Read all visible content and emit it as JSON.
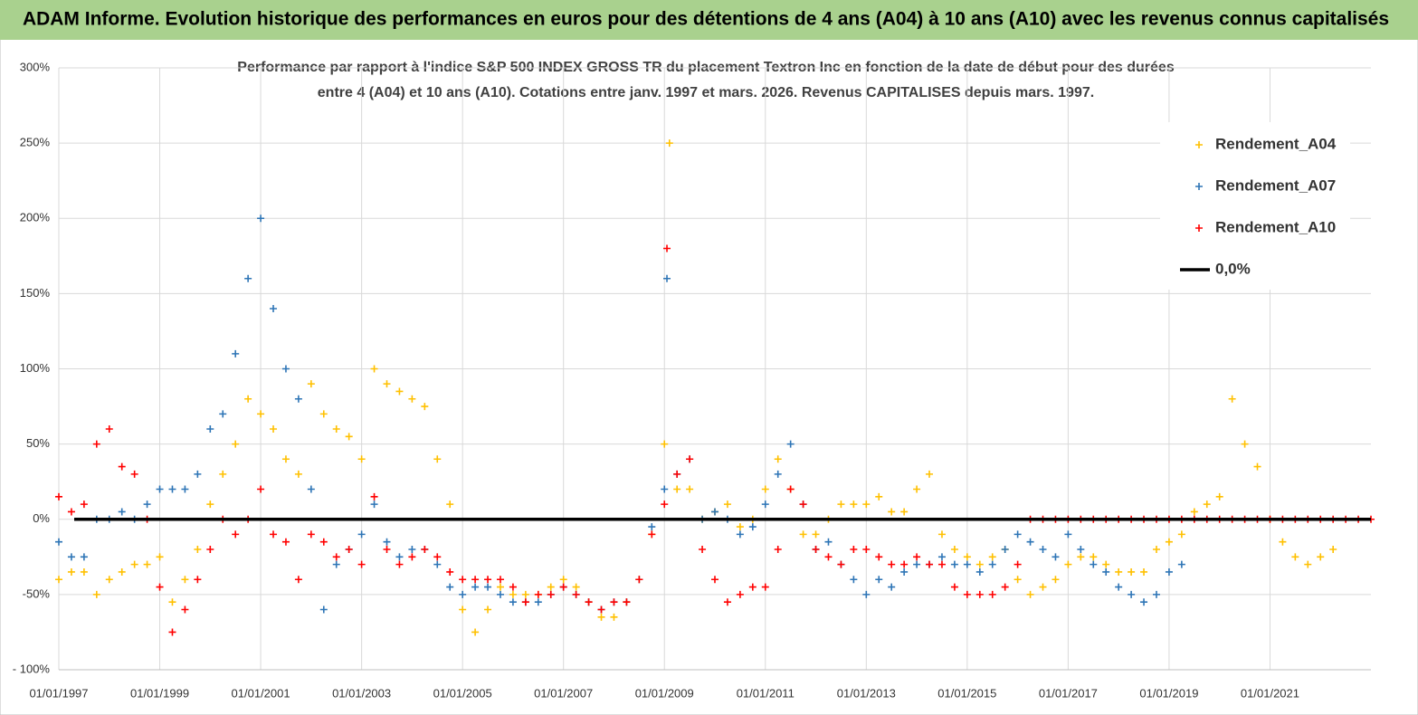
{
  "chart_data": {
    "type": "scatter",
    "title": "ADAM Informe. Evolution historique des performances en euros pour des détentions de 4 ans (A04) à 10 ans (A10) avec les revenus connus capitalisés",
    "subtitle": [
      "Performance par rapport à l'indice S&P 500 INDEX GROSS TR  du placement Textron Inc en fonction de la date de début pour des durées",
      "entre 4 (A04) et 10 ans (A10). Cotations entre janv. 1997 et mars. 2026. Revenus CAPITALISES depuis mars. 1997."
    ],
    "xlim": [
      1997,
      2023
    ],
    "xticks": [
      {
        "value": 1997,
        "label": "01/01/1997"
      },
      {
        "value": 1999,
        "label": "01/01/1999"
      },
      {
        "value": 2001,
        "label": "01/01/2001"
      },
      {
        "value": 2003,
        "label": "01/01/2003"
      },
      {
        "value": 2005,
        "label": "01/01/2005"
      },
      {
        "value": 2007,
        "label": "01/01/2007"
      },
      {
        "value": 2009,
        "label": "01/01/2009"
      },
      {
        "value": 2011,
        "label": "01/01/2011"
      },
      {
        "value": 2013,
        "label": "01/01/2013"
      },
      {
        "value": 2015,
        "label": "01/01/2015"
      },
      {
        "value": 2017,
        "label": "01/01/2017"
      },
      {
        "value": 2019,
        "label": "01/01/2019"
      },
      {
        "value": 2021,
        "label": "01/01/2021"
      }
    ],
    "ylim": [
      -100,
      300
    ],
    "yticks": [
      {
        "value": -100,
        "label": "- 100%"
      },
      {
        "value": -50,
        "label": "-50%"
      },
      {
        "value": 0,
        "label": "0%"
      },
      {
        "value": 50,
        "label": "50%"
      },
      {
        "value": 100,
        "label": "100%"
      },
      {
        "value": 150,
        "label": "150%"
      },
      {
        "value": 200,
        "label": "200%"
      },
      {
        "value": 250,
        "label": "250%"
      },
      {
        "value": 300,
        "label": "300%"
      }
    ],
    "grid": true,
    "legend": "upper right",
    "reference_line": {
      "name": "0,0%",
      "value": 0,
      "color": "#000000"
    },
    "series": [
      {
        "name": "Rendement_A04",
        "color": "#ffc000",
        "x": [
          1997,
          1997.25,
          1997.5,
          1997.75,
          1998,
          1998.25,
          1998.5,
          1998.75,
          1999,
          1999.25,
          1999.5,
          1999.75,
          2000,
          2000.25,
          2000.5,
          2000.75,
          2001,
          2001.25,
          2001.5,
          2001.75,
          2002,
          2002.25,
          2002.5,
          2002.75,
          2003,
          2003.25,
          2003.5,
          2003.75,
          2004,
          2004.25,
          2004.5,
          2004.75,
          2005,
          2005.25,
          2005.5,
          2005.75,
          2006,
          2006.25,
          2006.5,
          2006.75,
          2007,
          2007.25,
          2007.5,
          2007.75,
          2008,
          2008.25,
          2008.5,
          2008.75,
          2009,
          2009.1,
          2009.25,
          2009.5,
          2009.75,
          2010,
          2010.25,
          2010.5,
          2010.75,
          2011,
          2011.25,
          2011.5,
          2011.75,
          2012,
          2012.25,
          2012.5,
          2012.75,
          2013,
          2013.25,
          2013.5,
          2013.75,
          2014,
          2014.25,
          2014.5,
          2014.75,
          2015,
          2015.25,
          2015.5,
          2015.75,
          2016,
          2016.25,
          2016.5,
          2016.75,
          2017,
          2017.25,
          2017.5,
          2017.75,
          2018,
          2018.25,
          2018.5,
          2018.75,
          2019,
          2019.25,
          2019.5,
          2019.75,
          2020,
          2020.25,
          2020.5,
          2020.75,
          2021,
          2021.25,
          2021.5,
          2021.75,
          2022,
          2022.25
        ],
        "values": [
          -40,
          -35,
          -35,
          -50,
          -40,
          -35,
          -30,
          -30,
          -25,
          -55,
          -40,
          -20,
          10,
          30,
          50,
          80,
          70,
          60,
          40,
          30,
          90,
          70,
          60,
          55,
          40,
          100,
          90,
          85,
          80,
          75,
          40,
          10,
          -60,
          -75,
          -60,
          -45,
          -50,
          -50,
          -50,
          -45,
          -40,
          -45,
          -55,
          -65,
          -65,
          -55,
          -40,
          -10,
          50,
          250,
          20,
          20,
          0,
          5,
          10,
          -5,
          0,
          20,
          40,
          20,
          -10,
          -10,
          0,
          10,
          10,
          10,
          15,
          5,
          5,
          20,
          30,
          -10,
          -20,
          -25,
          -30,
          -25,
          -20,
          -40,
          -50,
          -45,
          -40,
          -30,
          -25,
          -25,
          -30,
          -35,
          -35,
          -35,
          -20,
          -15,
          -10,
          5,
          10,
          15,
          80,
          50,
          35,
          0,
          -15,
          -25,
          -30,
          -25,
          -20
        ]
      },
      {
        "name": "Rendement_A07",
        "color": "#2e75b6",
        "x": [
          1997,
          1997.25,
          1997.5,
          1997.75,
          1998,
          1998.25,
          1998.5,
          1998.75,
          1999,
          1999.25,
          1999.5,
          1999.75,
          2000,
          2000.25,
          2000.5,
          2000.75,
          2001,
          2001.25,
          2001.5,
          2001.75,
          2002,
          2002.25,
          2002.5,
          2002.75,
          2003,
          2003.25,
          2003.5,
          2003.75,
          2004,
          2004.25,
          2004.5,
          2004.75,
          2005,
          2005.25,
          2005.5,
          2005.75,
          2006,
          2006.25,
          2006.5,
          2006.75,
          2007,
          2007.25,
          2007.5,
          2007.75,
          2008,
          2008.25,
          2008.5,
          2008.75,
          2009,
          2009.05,
          2009.25,
          2009.5,
          2009.75,
          2010,
          2010.25,
          2010.5,
          2010.75,
          2011,
          2011.25,
          2011.5,
          2011.75,
          2012,
          2012.25,
          2012.5,
          2012.75,
          2013,
          2013.25,
          2013.5,
          2013.75,
          2014,
          2014.25,
          2014.5,
          2014.75,
          2015,
          2015.25,
          2015.5,
          2015.75,
          2016,
          2016.25,
          2016.5,
          2016.75,
          2017,
          2017.25,
          2017.5,
          2017.75,
          2018,
          2018.25,
          2018.5,
          2018.75,
          2019,
          2019.25
        ],
        "values": [
          -15,
          -25,
          -25,
          0,
          0,
          5,
          0,
          10,
          20,
          20,
          20,
          30,
          60,
          70,
          110,
          160,
          200,
          140,
          100,
          80,
          20,
          -60,
          -30,
          -20,
          -10,
          10,
          -15,
          -25,
          -20,
          -20,
          -30,
          -45,
          -50,
          -45,
          -45,
          -50,
          -55,
          -55,
          -55,
          -50,
          -45,
          -50,
          -55,
          -60,
          -55,
          -55,
          -40,
          -5,
          20,
          160,
          30,
          40,
          0,
          5,
          0,
          -10,
          -5,
          10,
          30,
          50,
          10,
          -20,
          -15,
          -30,
          -40,
          -50,
          -40,
          -45,
          -35,
          -30,
          -30,
          -25,
          -30,
          -30,
          -35,
          -30,
          -20,
          -10,
          -15,
          -20,
          -25,
          -10,
          -20,
          -30,
          -35,
          -45,
          -50,
          -55,
          -50,
          -35,
          -30
        ]
      },
      {
        "name": "Rendement_A10",
        "color": "#ff0000",
        "x": [
          1997,
          1997.25,
          1997.5,
          1997.75,
          1998,
          1998.25,
          1998.5,
          1998.75,
          1999,
          1999.25,
          1999.5,
          1999.75,
          2000,
          2000.25,
          2000.5,
          2000.75,
          2001,
          2001.25,
          2001.5,
          2001.75,
          2002,
          2002.25,
          2002.5,
          2002.75,
          2003,
          2003.25,
          2003.5,
          2003.75,
          2004,
          2004.25,
          2004.5,
          2004.75,
          2005,
          2005.25,
          2005.5,
          2005.75,
          2006,
          2006.25,
          2006.5,
          2006.75,
          2007,
          2007.25,
          2007.5,
          2007.75,
          2008,
          2008.25,
          2008.5,
          2008.75,
          2009,
          2009.05,
          2009.25,
          2009.5,
          2009.75,
          2010,
          2010.25,
          2010.5,
          2010.75,
          2011,
          2011.25,
          2011.5,
          2011.75,
          2012,
          2012.25,
          2012.5,
          2012.75,
          2013,
          2013.25,
          2013.5,
          2013.75,
          2014,
          2014.25,
          2014.5,
          2014.75,
          2015,
          2015.25,
          2015.5,
          2015.75,
          2016,
          2016.25,
          2016.5,
          2016.75,
          2017,
          2017.25,
          2017.5,
          2017.75,
          2018,
          2018.25,
          2018.5,
          2018.75,
          2019,
          2019.25,
          2019.5,
          2019.75,
          2020,
          2020.25,
          2020.5,
          2020.75,
          2021,
          2021.25,
          2021.5,
          2021.75,
          2022,
          2022.25,
          2022.5,
          2022.75,
          2023
        ],
        "values": [
          15,
          5,
          10,
          50,
          60,
          35,
          30,
          0,
          -45,
          -75,
          -60,
          -40,
          -20,
          0,
          -10,
          0,
          20,
          -10,
          -15,
          -40,
          -10,
          -15,
          -25,
          -20,
          -30,
          15,
          -20,
          -30,
          -25,
          -20,
          -25,
          -35,
          -40,
          -40,
          -40,
          -40,
          -45,
          -55,
          -50,
          -50,
          -45,
          -50,
          -55,
          -60,
          -55,
          -55,
          -40,
          -10,
          10,
          180,
          30,
          40,
          -20,
          -40,
          -55,
          -50,
          -45,
          -45,
          -20,
          20,
          10,
          -20,
          -25,
          -30,
          -20,
          -20,
          -25,
          -30,
          -30,
          -25,
          -30,
          -30,
          -45,
          -50,
          -50,
          -50,
          -45,
          -30,
          0,
          0,
          0,
          0,
          0,
          0,
          0,
          0,
          0,
          0,
          0,
          0,
          0,
          0,
          0,
          0,
          0,
          0,
          0,
          0,
          0,
          0,
          0,
          0,
          0,
          0,
          0,
          0
        ]
      }
    ]
  }
}
